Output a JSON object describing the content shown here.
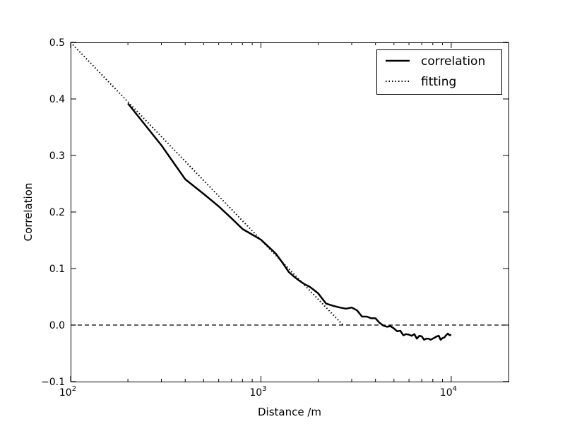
{
  "chart_data": {
    "type": "line",
    "title": "",
    "xlabel": "Distance /m",
    "ylabel": "Correlation",
    "xscale": "log",
    "xlim": [
      100,
      20000
    ],
    "ylim": [
      -0.1,
      0.5
    ],
    "grid": false,
    "legend_position": "top-right",
    "x_ticks": [
      {
        "value": 100,
        "base": "10",
        "exp": "2"
      },
      {
        "value": 1000,
        "base": "10",
        "exp": "3"
      },
      {
        "value": 10000,
        "base": "10",
        "exp": "4"
      }
    ],
    "y_ticks": [
      {
        "value": -0.1,
        "label": "−0.1"
      },
      {
        "value": 0.0,
        "label": "0.0"
      },
      {
        "value": 0.1,
        "label": "0.1"
      },
      {
        "value": 0.2,
        "label": "0.2"
      },
      {
        "value": 0.3,
        "label": "0.3"
      },
      {
        "value": 0.4,
        "label": "0.4"
      },
      {
        "value": 0.5,
        "label": "0.5"
      }
    ],
    "reference_line": {
      "y": 0.0,
      "style": "dashed"
    },
    "series": [
      {
        "name": "correlation",
        "style": "solid",
        "color": "#000000",
        "points": [
          [
            200,
            0.392
          ],
          [
            300,
            0.318
          ],
          [
            400,
            0.258
          ],
          [
            500,
            0.232
          ],
          [
            600,
            0.21
          ],
          [
            700,
            0.189
          ],
          [
            800,
            0.17
          ],
          [
            900,
            0.16
          ],
          [
            1000,
            0.151
          ],
          [
            1100,
            0.138
          ],
          [
            1200,
            0.126
          ],
          [
            1300,
            0.11
          ],
          [
            1400,
            0.094
          ],
          [
            1500,
            0.085
          ],
          [
            1600,
            0.078
          ],
          [
            1700,
            0.072
          ],
          [
            1800,
            0.068
          ],
          [
            1900,
            0.062
          ],
          [
            2000,
            0.056
          ],
          [
            2200,
            0.038
          ],
          [
            2400,
            0.034
          ],
          [
            2600,
            0.031
          ],
          [
            2800,
            0.029
          ],
          [
            3000,
            0.031
          ],
          [
            3200,
            0.026
          ],
          [
            3400,
            0.015
          ],
          [
            3600,
            0.015
          ],
          [
            3800,
            0.012
          ],
          [
            4000,
            0.012
          ],
          [
            4200,
            0.004
          ],
          [
            4400,
            -0.001
          ],
          [
            4600,
            -0.003
          ],
          [
            4800,
            -0.002
          ],
          [
            5000,
            -0.006
          ],
          [
            5200,
            -0.011
          ],
          [
            5400,
            -0.01
          ],
          [
            5600,
            -0.018
          ],
          [
            5800,
            -0.016
          ],
          [
            6000,
            -0.017
          ],
          [
            6200,
            -0.019
          ],
          [
            6400,
            -0.016
          ],
          [
            6600,
            -0.024
          ],
          [
            6800,
            -0.019
          ],
          [
            7000,
            -0.02
          ],
          [
            7200,
            -0.026
          ],
          [
            7400,
            -0.024
          ],
          [
            7600,
            -0.024
          ],
          [
            7800,
            -0.026
          ],
          [
            8000,
            -0.024
          ],
          [
            8200,
            -0.022
          ],
          [
            8400,
            -0.02
          ],
          [
            8600,
            -0.019
          ],
          [
            8800,
            -0.026
          ],
          [
            9000,
            -0.023
          ],
          [
            9200,
            -0.022
          ],
          [
            9400,
            -0.018
          ],
          [
            9600,
            -0.015
          ],
          [
            9800,
            -0.018
          ],
          [
            10000,
            -0.017
          ]
        ]
      },
      {
        "name": "fitting",
        "style": "dotted",
        "color": "#000000",
        "points": [
          [
            100,
            0.5
          ],
          [
            2700,
            0.0
          ]
        ]
      }
    ]
  }
}
